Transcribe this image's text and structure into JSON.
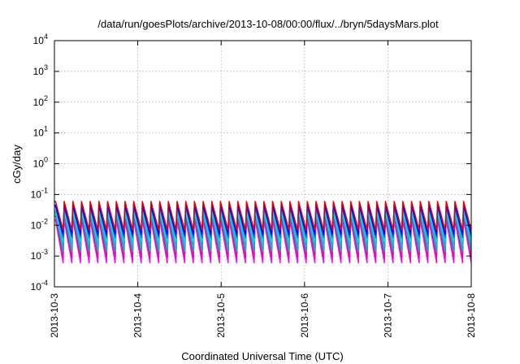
{
  "chart_data": {
    "type": "line",
    "title": "/data/run/goesPlots/archive/2013-10-08/00:00/flux/../bryn/5daysMars.plot",
    "xlabel": "Coordinated Universal Time (UTC)",
    "ylabel": "cGy/day",
    "yscale": "log",
    "ylim": [
      0.0001,
      10000
    ],
    "xlim": [
      "2013-10-03",
      "2013-10-08"
    ],
    "grid": true,
    "x_ticks": [
      "2013-10-3",
      "2013-10-4",
      "2013-10-5",
      "2013-10-6",
      "2013-10-7",
      "2013-10-8"
    ],
    "y_ticks": [
      {
        "base": "10",
        "exp": "4",
        "value": 10000
      },
      {
        "base": "10",
        "exp": "3",
        "value": 1000
      },
      {
        "base": "10",
        "exp": "2",
        "value": 100
      },
      {
        "base": "10",
        "exp": "1",
        "value": 10
      },
      {
        "base": "10",
        "exp": "0",
        "value": 1
      },
      {
        "base": "10",
        "exp": "-1",
        "value": 0.1
      },
      {
        "base": "10",
        "exp": "-2",
        "value": 0.01
      },
      {
        "base": "10",
        "exp": "-3",
        "value": 0.001
      },
      {
        "base": "10",
        "exp": "-4",
        "value": 0.0001
      }
    ],
    "sawtooth_cycles_per_day": 9.6,
    "series": [
      {
        "color": "#ff00ff",
        "peak": 0.015,
        "trough": 0.0006
      },
      {
        "color": "#c81e8c",
        "peak": 0.02,
        "trough": 0.0009
      },
      {
        "color": "#00b4b4",
        "peak": 0.025,
        "trough": 0.0014
      },
      {
        "color": "#2aa8e0",
        "peak": 0.03,
        "trough": 0.002
      },
      {
        "color": "#00e0e0",
        "peak": 0.028,
        "trough": 0.003
      },
      {
        "color": "#3060d0",
        "peak": 0.04,
        "trough": 0.004
      },
      {
        "color": "#0000ff",
        "peak": 0.045,
        "trough": 0.005
      },
      {
        "color": "#e00000",
        "peak": 0.06,
        "trough": 0.007
      }
    ]
  }
}
